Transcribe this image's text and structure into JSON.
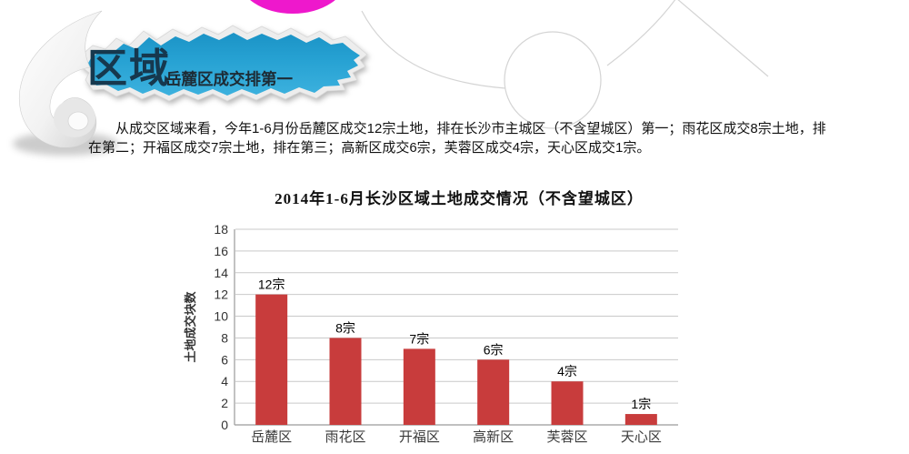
{
  "header": {
    "section_title": "区域",
    "section_subtitle": "岳麓区成交排第一",
    "banner_color_top": "#1b93c6",
    "banner_color_bottom": "#3cb1de",
    "section_title_color": "#16384e",
    "accent_circle_color": "#ee18cc"
  },
  "paragraph": {
    "text": "从成交区域来看，今年1-6月份岳麓区成交12宗土地，排在长沙市主城区（不含望城区）第一；雨花区成交8宗土地，排在第二；开福区成交7宗土地，排在第三；高新区成交6宗，芙蓉区成交4宗，天心区成交1宗。"
  },
  "chart_data": {
    "type": "bar",
    "title": "2014年1-6月长沙区域土地成交情况（不含望城区）",
    "categories": [
      "岳麓区",
      "雨花区",
      "开福区",
      "高新区",
      "芙蓉区",
      "天心区"
    ],
    "values": [
      12,
      8,
      7,
      6,
      4,
      1
    ],
    "value_labels": [
      "12宗",
      "8宗",
      "7宗",
      "6宗",
      "4宗",
      "1宗"
    ],
    "xlabel": "",
    "ylabel": "土地成交块数",
    "ylim": [
      0,
      18
    ],
    "ytick_step": 2,
    "bar_color": "#c83c3c",
    "grid": true,
    "legend": false
  }
}
